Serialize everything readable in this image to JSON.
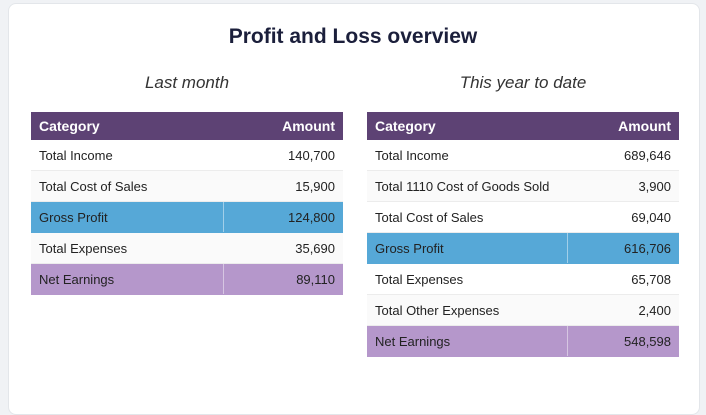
{
  "title": "Profit and Loss overview",
  "colors": {
    "header": "#5d4274",
    "gross_profit": "#56a8d7",
    "net_earnings": "#b597cb"
  },
  "headers": {
    "category": "Category",
    "amount": "Amount"
  },
  "left": {
    "subtitle": "Last month",
    "rows": [
      {
        "category": "Total Income",
        "amount": "140,700"
      },
      {
        "category": "Total Cost of Sales",
        "amount": "15,900"
      },
      {
        "category": "Gross Profit",
        "amount": "124,800"
      },
      {
        "category": "Total Expenses",
        "amount": "35,690"
      },
      {
        "category": "Net Earnings",
        "amount": "89,110"
      }
    ]
  },
  "right": {
    "subtitle": "This year to date",
    "rows": [
      {
        "category": "Total Income",
        "amount": "689,646"
      },
      {
        "category": "Total 1110 Cost of Goods Sold",
        "amount": "3,900"
      },
      {
        "category": "Total Cost of Sales",
        "amount": "69,040"
      },
      {
        "category": "Gross Profit",
        "amount": "616,706"
      },
      {
        "category": "Total Expenses",
        "amount": "65,708"
      },
      {
        "category": "Total Other Expenses",
        "amount": "2,400"
      },
      {
        "category": "Net Earnings",
        "amount": "548,598"
      }
    ]
  }
}
